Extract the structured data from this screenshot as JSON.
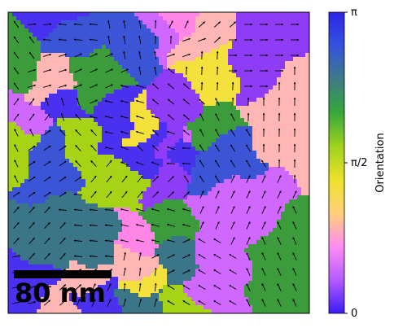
{
  "colorbar": {
    "label": "Orientation",
    "ticks": [
      {
        "label": "π",
        "value": 1.0
      },
      {
        "label": "π/2",
        "value": 0.5
      },
      {
        "label": "0",
        "value": 0.0
      }
    ],
    "colors": [
      "#3b1cf5",
      "#b45cff",
      "#ff8cf2",
      "#ffd07a",
      "#ece22c",
      "#9ed21e",
      "#35a83a",
      "#3f7a86",
      "#3553dc",
      "#2d24e8"
    ]
  },
  "scale_bar": {
    "label": "80 nm"
  },
  "map": {
    "arrow_color": "#000000",
    "domain_palette": [
      "#4a31f0",
      "#8f3cf7",
      "#d067ff",
      "#ff86e6",
      "#ffb7b5",
      "#f4e13c",
      "#a7d316",
      "#3c9c3c",
      "#3b7688",
      "#3c55d6"
    ]
  }
}
